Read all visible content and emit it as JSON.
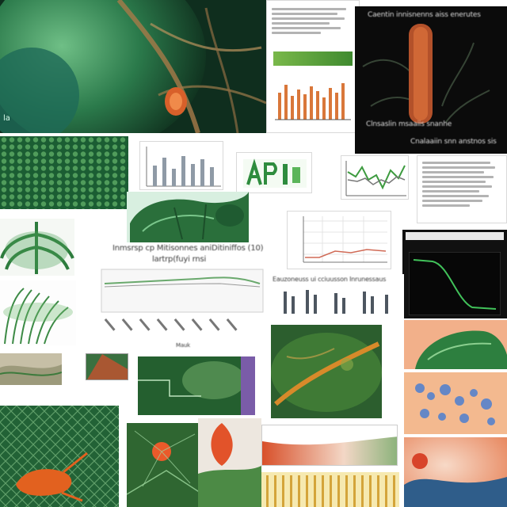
{
  "tiles": {
    "chart_title_a": "Inmsrsp cp Mitisonnes aniDitiniffos (10)",
    "chart_title_b": "lartrp(fuyi rnsi",
    "corner_label": "la",
    "black_panel_header": "Caentin innisnenns aiss enerutes",
    "black_panel_footer_a": "Clnsaslin msaaiis snanhe",
    "black_panel_footer_b": "Cnalaaiin snn anstnos sis",
    "axis_word": "Mauk",
    "series_text": "Eauzoneuss ui cciuusson Inrunessaus"
  },
  "colors": {
    "leaf_green": "#2f7a3a",
    "dark_green": "#123d20",
    "orange": "#e0611e",
    "bar_orange": "#d9773a",
    "black": "#0b0b0b"
  }
}
